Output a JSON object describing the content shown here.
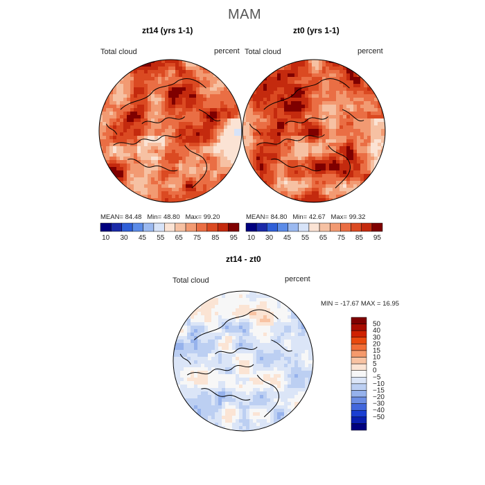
{
  "figure": {
    "title": "MAM"
  },
  "colors": {
    "abs_scale": [
      "#00007f",
      "#1a2aa8",
      "#2f5fd8",
      "#5b8be8",
      "#9bb9f0",
      "#d7e3f8",
      "#fbe3d4",
      "#f6c1a3",
      "#f29a72",
      "#ea6e44",
      "#db4a22",
      "#c42a0e",
      "#7f0000"
    ],
    "diff_scale": [
      "#7f0000",
      "#a80c00",
      "#cf2200",
      "#e94a0e",
      "#f16e38",
      "#f59a6c",
      "#f8c3a3",
      "#fbe4d4",
      "#f7f7f7",
      "#dbe5f7",
      "#bccff2",
      "#96b2ec",
      "#6d8ee4",
      "#4267dd",
      "#1b3fd2",
      "#0a1fb0",
      "#00007f"
    ],
    "coastline": "#000000"
  },
  "chart_data": [
    {
      "type": "heatmap",
      "title": "zt14 (yrs 1-1)",
      "field_label": "Total cloud",
      "units_label": "percent",
      "projection": "north polar stereographic",
      "stats": {
        "mean_label": "MEAN=",
        "mean": "84.48",
        "min_label": "Min=",
        "min": "48.80",
        "max_label": "Max=",
        "max": "99.20"
      },
      "colorbar_ticks": [
        "10",
        "30",
        "45",
        "55",
        "65",
        "75",
        "85",
        "95"
      ]
    },
    {
      "type": "heatmap",
      "title": "zt0 (yrs 1-1)",
      "field_label": "Total cloud",
      "units_label": "percent",
      "projection": "north polar stereographic",
      "stats": {
        "mean_label": "MEAN=",
        "mean": "84.80",
        "min_label": "Min=",
        "min": "42.67",
        "max_label": "Max=",
        "max": "99.32"
      },
      "colorbar_ticks": [
        "10",
        "30",
        "45",
        "55",
        "65",
        "75",
        "85",
        "95"
      ]
    },
    {
      "type": "heatmap",
      "title": "zt14 - zt0",
      "field_label": "Total cloud",
      "units_label": "percent",
      "projection": "north polar stereographic",
      "stats": {
        "min_label": "MIN =",
        "min": "-17.67",
        "max_label": "MAX =",
        "max": "16.95"
      },
      "colorbar_levels": [
        "50",
        "40",
        "30",
        "20",
        "15",
        "10",
        "5",
        "0",
        "−5",
        "−10",
        "−15",
        "−20",
        "−30",
        "−40",
        "−50"
      ]
    }
  ]
}
